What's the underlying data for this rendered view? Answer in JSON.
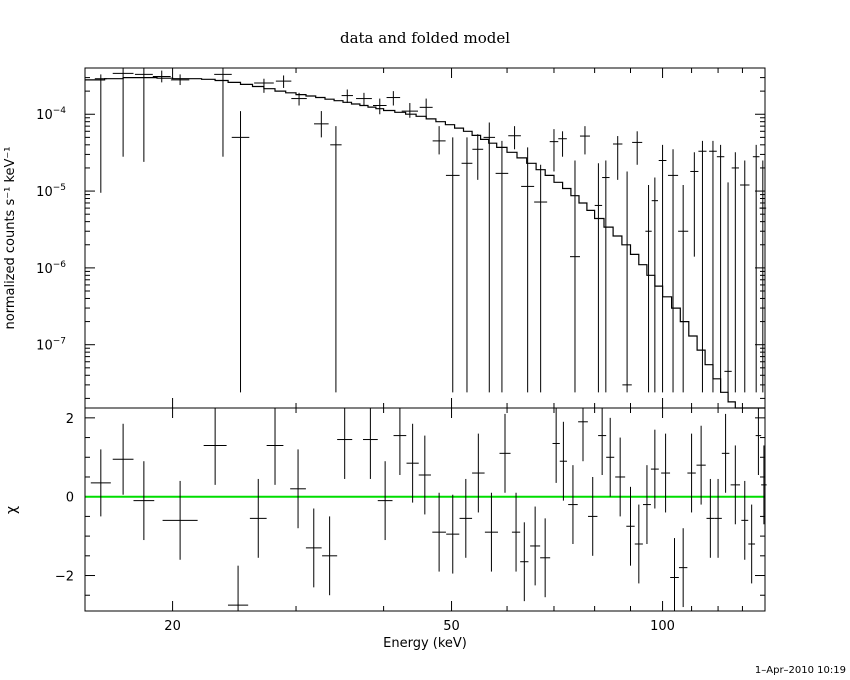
{
  "chart_data": [
    {
      "type": "line",
      "title": "data and folded model",
      "ylabel": "normalized counts s⁻¹ keV⁻¹",
      "yscale": "log",
      "xscale": "log",
      "xlim": [
        15,
        140
      ],
      "ylim": [
        1.5e-08,
        0.0004
      ],
      "yticks": [
        {
          "value": 0.0001,
          "base": "10",
          "exp": "−4"
        },
        {
          "value": 1e-05,
          "base": "10",
          "exp": "−5"
        },
        {
          "value": 1e-06,
          "base": "10",
          "exp": "−6"
        },
        {
          "value": 1e-07,
          "base": "10",
          "exp": "−7"
        }
      ],
      "data_points": [
        [
          15.8,
          0.00029,
          9.5e-06,
          0.00033
        ],
        [
          17,
          0.00034,
          2.8e-05,
          0.00044
        ],
        [
          18.2,
          0.00033,
          2.4e-05,
          0.00042
        ],
        [
          19.3,
          0.00031,
          0.00026,
          0.00037
        ],
        [
          20.5,
          0.00028,
          0.00024,
          0.00033
        ],
        [
          23.6,
          0.00033,
          2.8e-05,
          0.00042
        ],
        [
          25,
          5e-05,
          2.4e-08,
          0.00011
        ],
        [
          27,
          0.000255,
          0.00019,
          0.00029
        ],
        [
          28.8,
          0.00027,
          0.00022,
          0.00032
        ],
        [
          30.3,
          0.00016,
          0.00013,
          0.00019
        ],
        [
          32.6,
          7.5e-05,
          5e-05,
          0.00011
        ],
        [
          34.2,
          4e-05,
          2.4e-08,
          7e-05
        ],
        [
          35.5,
          0.000175,
          0.00014,
          0.00021
        ],
        [
          37.5,
          0.00016,
          0.00013,
          0.00019
        ],
        [
          39.5,
          0.00013,
          0.0001,
          0.00016
        ],
        [
          41.3,
          0.000165,
          0.00013,
          0.0002
        ],
        [
          43.6,
          0.00011,
          9e-05,
          0.00014
        ],
        [
          46,
          0.000123,
          9e-05,
          0.00016
        ],
        [
          48,
          4.5e-05,
          3e-05,
          7e-05
        ],
        [
          50.2,
          1.6e-05,
          2.4e-08,
          5e-05
        ],
        [
          52.6,
          2.3e-05,
          2.4e-08,
          5e-05
        ],
        [
          54.5,
          3.5e-05,
          1.4e-05,
          5.5e-05
        ],
        [
          56.6,
          5e-05,
          2.4e-08,
          7.8e-05
        ],
        [
          59,
          1.7e-05,
          2.4e-08,
          4.5e-05
        ],
        [
          61.5,
          5.25e-05,
          3.5e-05,
          7e-05
        ],
        [
          64.2,
          1.15e-05,
          2.4e-08,
          3.7e-05
        ],
        [
          67,
          7.2e-06,
          2.4e-08,
          2.2e-05
        ],
        [
          70,
          4.4e-05,
          1.8e-05,
          6.4e-05
        ],
        [
          72,
          4.8e-05,
          2.8e-05,
          6e-05
        ],
        [
          75,
          1.4e-06,
          2.4e-08,
          2.5e-05
        ],
        [
          77.5,
          5.2e-05,
          3e-05,
          7e-05
        ],
        [
          81,
          6.5e-06,
          2.4e-08,
          2.3e-05
        ],
        [
          83,
          1.5e-05,
          2.4e-08,
          2.5e-05
        ],
        [
          86.3,
          4.1e-05,
          1.4e-05,
          5.2e-05
        ],
        [
          89,
          3e-08,
          2.4e-08,
          1.8e-05
        ],
        [
          92,
          4.3e-05,
          2.2e-05,
          6e-05
        ],
        [
          95.5,
          3e-06,
          2.4e-08,
          1.2e-05
        ],
        [
          97.5,
          7.5e-06,
          2.4e-08,
          1.5e-05
        ],
        [
          100,
          2.5e-05,
          2.4e-08,
          4e-05
        ],
        [
          103.5,
          1.6e-05,
          2.4e-08,
          3.5e-05
        ],
        [
          107,
          3e-06,
          2.4e-08,
          1.2e-05
        ],
        [
          111,
          1.8e-05,
          1.4e-06,
          3.2e-05
        ],
        [
          114,
          3.3e-05,
          2.4e-08,
          4.5e-05
        ],
        [
          118,
          3.3e-05,
          2.4e-08,
          4.5e-05
        ],
        [
          121,
          2.8e-05,
          2.4e-08,
          4e-05
        ],
        [
          124,
          4.5e-08,
          2.4e-08,
          1.3e-05
        ],
        [
          127,
          2e-05,
          2.4e-08,
          3.2e-05
        ],
        [
          131,
          1.2e-05,
          2.4e-08,
          2.5e-05
        ],
        [
          136,
          2.8e-05,
          2.4e-08,
          4e-05
        ],
        [
          139,
          6e-06,
          2.4e-08,
          2.5e-05
        ]
      ],
      "model_steps": [
        [
          15,
          0.00028
        ],
        [
          16,
          0.00029
        ],
        [
          17,
          0.0003
        ],
        [
          18,
          0.0003
        ],
        [
          19,
          0.000295
        ],
        [
          20,
          0.00029
        ],
        [
          21,
          0.00029
        ],
        [
          22,
          0.000285
        ],
        [
          23,
          0.000275
        ],
        [
          24,
          0.00026
        ],
        [
          25,
          0.000245
        ],
        [
          26,
          0.00023
        ],
        [
          27,
          0.000215
        ],
        [
          28,
          0.0002
        ],
        [
          29,
          0.00019
        ],
        [
          30,
          0.00018
        ],
        [
          31,
          0.000173
        ],
        [
          32,
          0.000165
        ],
        [
          33,
          0.000157
        ],
        [
          34,
          0.00015
        ],
        [
          35,
          0.000143
        ],
        [
          36,
          0.000136
        ],
        [
          37,
          0.00013
        ],
        [
          38,
          0.000124
        ],
        [
          39,
          0.000118
        ],
        [
          40,
          0.000112
        ],
        [
          41.5,
          0.000106
        ],
        [
          43,
          0.0001
        ],
        [
          44.5,
          9.4e-05
        ],
        [
          46,
          8.7e-05
        ],
        [
          47.5,
          8e-05
        ],
        [
          49,
          7.3e-05
        ],
        [
          50.5,
          6.6e-05
        ],
        [
          52,
          6e-05
        ],
        [
          53.5,
          5.3e-05
        ],
        [
          55,
          4.7e-05
        ],
        [
          56.5,
          4.2e-05
        ],
        [
          58,
          3.7e-05
        ],
        [
          60,
          3.2e-05
        ],
        [
          62,
          2.7e-05
        ],
        [
          64,
          2.3e-05
        ],
        [
          66,
          1.9e-05
        ],
        [
          68,
          1.6e-05
        ],
        [
          70,
          1.3e-05
        ],
        [
          72,
          1.08e-05
        ],
        [
          74,
          8.7e-06
        ],
        [
          76,
          7e-06
        ],
        [
          78,
          5.6e-06
        ],
        [
          80,
          4.4e-06
        ],
        [
          82.5,
          3.4e-06
        ],
        [
          85,
          2.6e-06
        ],
        [
          87.5,
          2e-06
        ],
        [
          90,
          1.5e-06
        ],
        [
          92.5,
          1.1e-06
        ],
        [
          95,
          8e-07
        ],
        [
          97.5,
          5.8e-07
        ],
        [
          100,
          4.2e-07
        ],
        [
          103,
          3e-07
        ],
        [
          106,
          2e-07
        ],
        [
          109,
          1.3e-07
        ],
        [
          112,
          8.5e-08
        ],
        [
          115,
          5.5e-08
        ],
        [
          118,
          3.6e-08
        ],
        [
          121,
          2.4e-08
        ],
        [
          124,
          1.8e-08
        ],
        [
          127,
          1.5e-08
        ],
        [
          132,
          1.3e-08
        ],
        [
          137,
          1.2e-08
        ],
        [
          140,
          1.1e-08
        ]
      ]
    },
    {
      "type": "scatter",
      "xlabel": "Energy (keV)",
      "ylabel": "χ",
      "xscale": "log",
      "xlim": [
        15,
        140
      ],
      "ylim": [
        -2.9,
        2.25
      ],
      "yticks": [
        "2",
        "0",
        "−2"
      ],
      "xticks": [
        {
          "value": 20,
          "label": "20"
        },
        {
          "value": 50,
          "label": "50"
        },
        {
          "value": 100,
          "label": "100"
        }
      ],
      "zero_line_color": "#00dd00",
      "residuals": [
        [
          15.8,
          0.35,
          0.85
        ],
        [
          17,
          0.95,
          0.9
        ],
        [
          18.2,
          -0.1,
          1.0
        ],
        [
          20.5,
          -0.6,
          1.0
        ],
        [
          23,
          1.3,
          1.0
        ],
        [
          24.8,
          -2.75,
          1.0
        ],
        [
          26.5,
          -0.55,
          1.0
        ],
        [
          28,
          1.3,
          1.0
        ],
        [
          30.2,
          0.2,
          1.0
        ],
        [
          31.8,
          -1.3,
          1.0
        ],
        [
          33.5,
          -1.5,
          1.0
        ],
        [
          35.2,
          1.45,
          1.0
        ],
        [
          38.3,
          1.45,
          1.0
        ],
        [
          40.2,
          -0.1,
          1.0
        ],
        [
          42.2,
          1.55,
          1.0
        ],
        [
          44,
          0.85,
          1.0
        ],
        [
          45.8,
          0.55,
          1.0
        ],
        [
          48,
          -0.9,
          1.0
        ],
        [
          50.2,
          -0.95,
          1.0
        ],
        [
          52.4,
          -0.55,
          1.0
        ],
        [
          54.6,
          0.6,
          1.0
        ],
        [
          57,
          -0.9,
          1.0
        ],
        [
          59.6,
          1.1,
          1.0
        ],
        [
          61.8,
          -0.9,
          1.0
        ],
        [
          63.5,
          -1.65,
          1.0
        ],
        [
          65.8,
          -1.25,
          1.0
        ],
        [
          68,
          -1.55,
          1.0
        ],
        [
          70.5,
          1.35,
          1.0
        ],
        [
          72.2,
          0.9,
          1.0
        ],
        [
          74.5,
          -0.2,
          1.0
        ],
        [
          77,
          1.9,
          1.0
        ],
        [
          79.5,
          -0.5,
          1.0
        ],
        [
          82,
          1.55,
          1.0
        ],
        [
          84.2,
          1.0,
          1.0
        ],
        [
          87,
          0.5,
          1.0
        ],
        [
          90,
          -0.75,
          1.0
        ],
        [
          92.5,
          -1.2,
          1.0
        ],
        [
          95,
          -0.2,
          1.0
        ],
        [
          97.5,
          0.7,
          1.0
        ],
        [
          101,
          0.6,
          1.0
        ],
        [
          104,
          -2.05,
          1.0
        ],
        [
          107,
          -1.8,
          1.0
        ],
        [
          110,
          0.6,
          1.0
        ],
        [
          113.5,
          0.8,
          1.0
        ],
        [
          117,
          -0.55,
          1.0
        ],
        [
          120,
          -0.55,
          1.0
        ],
        [
          123,
          1.1,
          1.0
        ],
        [
          127,
          0.3,
          1.0
        ],
        [
          131,
          -0.6,
          1.0
        ],
        [
          134,
          -1.2,
          1.0
        ],
        [
          137,
          1.55,
          1.0
        ],
        [
          139.5,
          0.3,
          1.0
        ]
      ]
    }
  ],
  "footer": {
    "timestamp": "1–Apr–2010 10:19"
  }
}
